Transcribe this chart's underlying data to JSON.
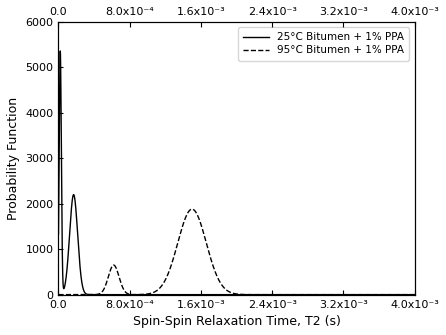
{
  "title": "",
  "xlabel": "Spin-Spin Relaxation Time, T2 (s)",
  "ylabel": "Probability Function",
  "xlim": [
    0,
    0.004
  ],
  "ylim": [
    0,
    6000
  ],
  "yticks": [
    0,
    1000,
    2000,
    3000,
    4000,
    5000,
    6000
  ],
  "xticks": [
    0.0,
    0.0008,
    0.0016,
    0.0024,
    0.0032,
    0.004
  ],
  "legend": [
    {
      "label": "25°C Bitumen + 1% PPA",
      "linestyle": "solid"
    },
    {
      "label": "95°C Bitumen + 1% PPA",
      "linestyle": "dashed"
    }
  ],
  "line_color": "#000000",
  "curve25_peak1_mu": 2e-05,
  "curve25_peak1_sigma": 1.2e-05,
  "curve25_peak1_amp": 5350,
  "curve25_peak2_mu": 0.00017,
  "curve25_peak2_sigma": 4.5e-05,
  "curve25_peak2_amp": 2200,
  "curve95_small_peak_mu": 0.00062,
  "curve95_small_peak_sigma": 6e-05,
  "curve95_small_peak_amp": 650,
  "curve95_main_peak_mu": 0.0015,
  "curve95_main_peak_sigma": 0.00016,
  "curve95_main_peak_amp": 1880
}
